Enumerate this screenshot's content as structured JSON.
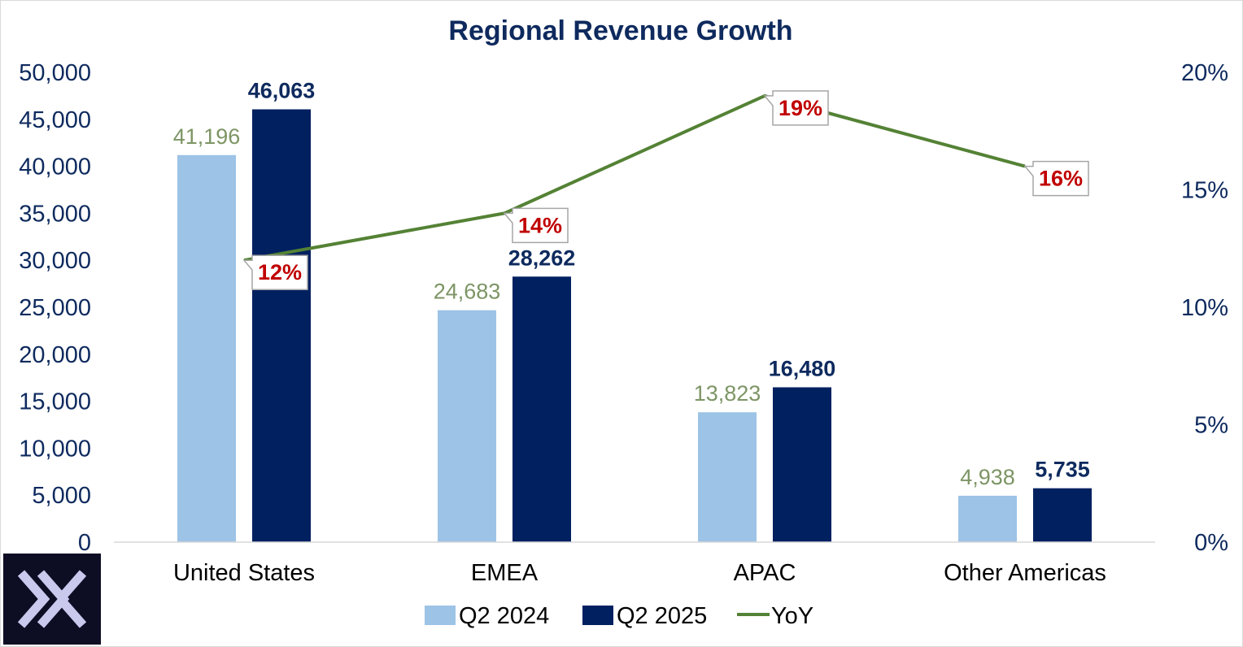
{
  "chart_data": {
    "type": "bar",
    "title": "Regional Revenue Growth",
    "categories": [
      "United States",
      "EMEA",
      "APAC",
      "Other Americas"
    ],
    "series": [
      {
        "name": "Q2 2024",
        "values": [
          41196,
          24683,
          13823,
          4938
        ],
        "labels": [
          "41,196",
          "24,683",
          "13,823",
          "4,938"
        ],
        "color": "#9dc3e6"
      },
      {
        "name": "Q2 2025",
        "values": [
          46063,
          28262,
          16480,
          5735
        ],
        "labels": [
          "46,063",
          "28,262",
          "16,480",
          "5,735"
        ],
        "color": "#002060"
      },
      {
        "name": "YoY",
        "type": "line",
        "axis": "secondary",
        "values": [
          12,
          14,
          19,
          16
        ],
        "labels": [
          "12%",
          "14%",
          "19%",
          "16%"
        ],
        "color": "#548235"
      }
    ],
    "ylim": [
      0,
      50000
    ],
    "yticks": [
      "0",
      "5,000",
      "10,000",
      "15,000",
      "20,000",
      "25,000",
      "30,000",
      "35,000",
      "40,000",
      "45,000",
      "50,000"
    ],
    "y2lim": [
      0,
      20
    ],
    "y2ticks": [
      "0%",
      "5%",
      "10%",
      "15%",
      "20%"
    ],
    "grid": false,
    "legend": "bottom"
  },
  "logo": {
    "name": "company-logo",
    "colors": {
      "background": "#0d0d24",
      "mark": "#c9c9ee"
    }
  }
}
